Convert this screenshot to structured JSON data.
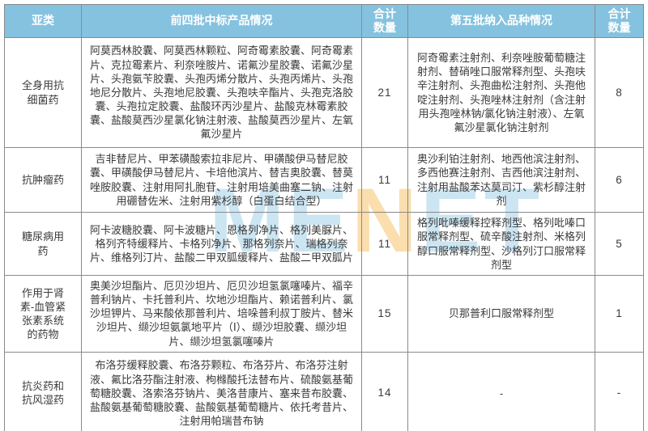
{
  "watermark": {
    "letters": [
      "M",
      "E",
      "N",
      "E",
      "T"
    ]
  },
  "colors": {
    "header_bg": "#85c2df",
    "header_text": "#ffffff",
    "border": "#8a8a8a",
    "body_text": "#3a3a3a",
    "watermark_blue": "#85c2df",
    "watermark_yellow": "#f6be5c"
  },
  "table": {
    "headers": [
      "亚类",
      "前四批中标产品情况",
      "合计数量",
      "第五批纳入品种情况",
      "合计数量"
    ],
    "rows": [
      {
        "subclass": "全身用抗细菌药",
        "batch4_products": "阿莫西林胶囊、阿莫西林颗粒、阿奇霉素胶囊、阿奇霉素片、克拉霉素片、利奈唑胺片、诺氟沙星胶囊、诺氟沙星片、头孢氨苄胶囊、头孢丙烯分散片、头孢丙烯片、头孢地尼分散片、头孢地尼胶囊、头孢呋辛酯片、头孢克洛胶囊、头孢拉定胶囊、盐酸环丙沙星片、盐酸克林霉素胶囊、盐酸莫西沙星氯化钠注射液、盐酸莫西沙星片、左氧氟沙星片",
        "batch4_count": "21",
        "batch5_products": "阿奇霉素注射剂、利奈唑胺葡萄糖注射剂、替硝唑口服常释剂型、头孢呋辛注射剂、头孢曲松注射剂、头孢他啶注射剂、头孢唑林注射剂（含注射用头孢唑林钠/氯化钠注射液）、左氧氟沙星氯化钠注射剂",
        "batch5_count": "8"
      },
      {
        "subclass": "抗肿瘤药",
        "batch4_products": "吉非替尼片、甲苯磺酸索拉非尼片、甲磺酸伊马替尼胶囊、甲磺酸伊马替尼片、卡培他滨片、替吉奥胶囊、替莫唑胺胶囊、注射用阿扎胞苷、注射用培美曲塞二钠、注射用硼替佐米、注射用紫杉醇（白蛋白结合型）",
        "batch4_count": "11",
        "batch5_products": "奥沙利铂注射剂、地西他滨注射剂、多西他赛注射剂、吉西他滨注射剂、注射用盐酸苯达莫司汀、紫杉醇注射剂",
        "batch5_count": "6"
      },
      {
        "subclass": "糖尿病用药",
        "batch4_products": "阿卡波糖胶囊、阿卡波糖片、恩格列净片、格列美脲片、格列齐特缓释片、卡格列净片、那格列奈片、瑞格列奈片、维格列汀片、盐酸二甲双胍缓释片、盐酸二甲双胍片",
        "batch4_count": "11",
        "batch5_products": "格列吡嗪缓释控释剂型、格列吡嗪口服常释剂型、硫辛酸注射剂、米格列醇口服常释剂型、沙格列汀口服常释剂型",
        "batch5_count": "5"
      },
      {
        "subclass": "作用于肾素-血管紧张素系统的药物",
        "batch4_products": "奥美沙坦酯片、厄贝沙坦片、厄贝沙坦氢氯噻嗪片、福辛普利钠片、卡托普利片、坎地沙坦酯片、赖诺普利片、氯沙坦钾片、马来酸依那普利片、培哚普利叔丁胺片、替米沙坦片、缬沙坦氨氯地平片（Ⅰ）、缬沙坦胶囊、缬沙坦片、缬沙坦氢氯噻嗪片",
        "batch4_count": "15",
        "batch5_products": "贝那普利口服常释剂型",
        "batch5_count": "1"
      },
      {
        "subclass": "抗炎药和抗风湿药",
        "batch4_products": "布洛芬缓释胶囊、布洛芬颗粒、布洛芬片、布洛芬注射液、氟比洛芬酯注射液、枸橼酸托法替布片、硫酸氨基葡萄糖胶囊、洛索洛芬钠片、美洛昔康片、塞来昔布胶囊、盐酸氨基葡萄糖胶囊、盐酸氨基葡萄糖片、依托考昔片、注射用帕瑞昔布钠",
        "batch4_count": "14",
        "batch5_products": "-",
        "batch5_count": "-"
      }
    ]
  }
}
